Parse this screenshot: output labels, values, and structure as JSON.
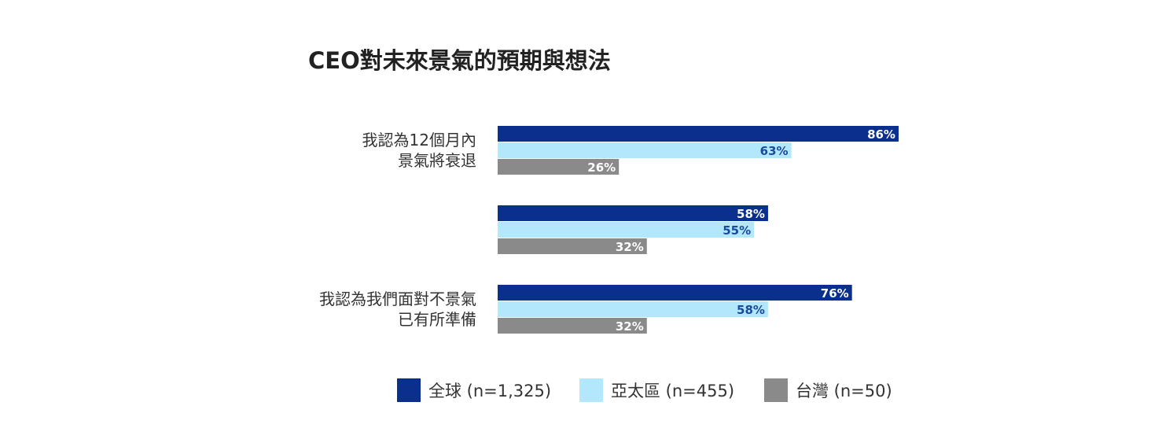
{
  "chart_data": {
    "type": "bar",
    "orientation": "horizontal",
    "title": "CEO對未來景氣的預期與想法",
    "xlabel": "",
    "ylabel": "",
    "xlim": [
      0,
      100
    ],
    "grid": false,
    "legend_position": "bottom",
    "categories": [
      {
        "lines": [
          "我認為12個月內",
          "景氣將衰退"
        ]
      },
      {
        "lines": []
      },
      {
        "lines": [
          "我認為我們面對不景氣",
          "已有所準備"
        ]
      }
    ],
    "series": [
      {
        "name": "全球 (n=1,325)",
        "color": "#0a2f8c",
        "label_color": "#ffffff",
        "values": [
          86,
          58,
          76
        ],
        "labels": [
          "86%",
          "58%",
          "76%"
        ]
      },
      {
        "name": "亞太區 (n=455)",
        "color": "#b3e8fc",
        "label_color": "#1a4aa0",
        "values": [
          63,
          55,
          58
        ],
        "labels": [
          "63%",
          "55%",
          "58%"
        ]
      },
      {
        "name": "台灣 (n=50)",
        "color": "#8a8a8a",
        "label_color": "#ffffff",
        "values": [
          26,
          32,
          32
        ],
        "labels": [
          "26%",
          "32%",
          "32%"
        ]
      }
    ]
  }
}
